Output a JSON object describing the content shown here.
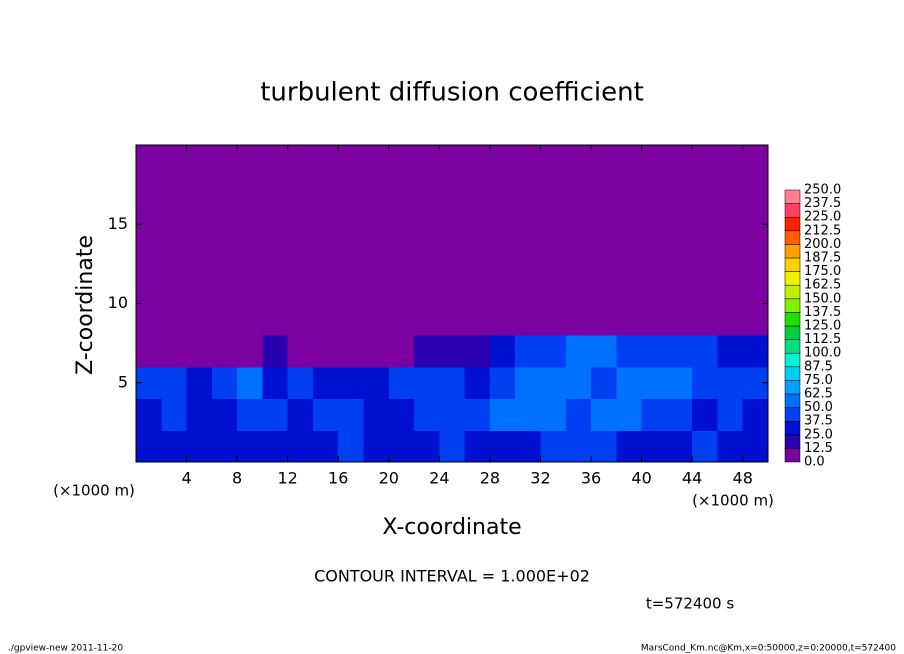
{
  "chart_data": {
    "type": "heatmap",
    "title": "turbulent diffusion coefficient",
    "x_label": "X-coordinate",
    "y_label": "Z-coordinate",
    "x_unit": "(×1000 m)",
    "y_unit": "(×1000 m)",
    "annotation": "CONTOUR INTERVAL = 1.000E+02",
    "time_label": "t=572400 s",
    "footer_left": "./gpview-new  2011-11-20",
    "footer_right": "MarsCond_Km.nc@Km,x=0:50000,z=0:20000,t=572400",
    "x": [
      1,
      3,
      5,
      7,
      9,
      11,
      13,
      15,
      17,
      19,
      21,
      23,
      25,
      27,
      29,
      31,
      33,
      35,
      37,
      39,
      41,
      43,
      45,
      47,
      49
    ],
    "y": [
      1,
      3,
      5,
      7,
      9,
      11,
      13,
      15,
      17,
      19
    ],
    "z": [
      [
        30,
        25,
        30,
        35,
        30,
        25,
        30,
        35,
        40,
        30,
        25,
        35,
        40,
        35,
        30,
        35,
        40,
        45,
        40,
        35,
        30,
        35,
        40,
        30,
        25
      ],
      [
        35,
        40,
        30,
        35,
        45,
        40,
        35,
        40,
        45,
        35,
        30,
        40,
        45,
        40,
        50,
        55,
        50,
        45,
        50,
        55,
        45,
        40,
        35,
        40,
        35
      ],
      [
        40,
        45,
        35,
        40,
        50,
        30,
        45,
        35,
        30,
        35,
        40,
        45,
        40,
        35,
        45,
        55,
        60,
        50,
        45,
        55,
        60,
        50,
        45,
        40,
        45
      ],
      [
        0,
        5,
        10,
        5,
        10,
        15,
        10,
        5,
        5,
        5,
        10,
        15,
        20,
        15,
        25,
        40,
        45,
        55,
        50,
        45,
        40,
        45,
        40,
        35,
        35
      ],
      [
        0,
        0,
        0,
        0,
        0,
        0,
        0,
        0,
        0,
        0,
        0,
        0,
        0,
        0,
        5,
        10,
        0,
        0,
        0,
        5,
        0,
        0,
        0,
        0,
        0
      ],
      [
        0,
        0,
        0,
        0,
        0,
        0,
        0,
        0,
        0,
        0,
        0,
        0,
        0,
        0,
        0,
        0,
        0,
        0,
        0,
        0,
        0,
        0,
        0,
        0,
        0
      ],
      [
        0,
        0,
        0,
        0,
        0,
        0,
        0,
        0,
        0,
        0,
        0,
        0,
        0,
        0,
        0,
        0,
        0,
        0,
        0,
        0,
        0,
        0,
        0,
        0,
        0
      ],
      [
        0,
        0,
        0,
        0,
        0,
        0,
        0,
        0,
        0,
        0,
        0,
        0,
        0,
        0,
        0,
        0,
        0,
        0,
        0,
        0,
        0,
        0,
        0,
        0,
        0
      ],
      [
        0,
        0,
        0,
        0,
        0,
        0,
        0,
        0,
        0,
        0,
        0,
        0,
        0,
        0,
        0,
        0,
        0,
        0,
        0,
        0,
        0,
        0,
        0,
        0,
        0
      ],
      [
        0,
        0,
        0,
        0,
        0,
        0,
        0,
        0,
        0,
        0,
        0,
        0,
        0,
        0,
        0,
        0,
        0,
        0,
        0,
        0,
        0,
        0,
        0,
        0,
        0
      ]
    ],
    "xlim": [
      0,
      50
    ],
    "ylim": [
      0,
      20
    ],
    "xticks": [
      4,
      8,
      12,
      16,
      20,
      24,
      28,
      32,
      36,
      40,
      44,
      48
    ],
    "yticks": [
      5,
      10,
      15
    ],
    "levels": [
      {
        "value": 0,
        "label": "0.0"
      },
      12.5,
      {
        "value": 25,
        "label": "25.0"
      },
      37.5,
      {
        "value": 50,
        "label": "50.0"
      },
      62.5,
      {
        "value": 75,
        "label": "75.0"
      },
      87.5,
      {
        "value": 100,
        "label": "100.0"
      },
      112.5,
      {
        "value": 125,
        "label": "125.0"
      },
      137.5,
      {
        "value": 150,
        "label": "150.0"
      },
      162.5,
      {
        "value": 175,
        "label": "175.0"
      },
      187.5,
      {
        "value": 200,
        "label": "200.0"
      },
      212.5,
      {
        "value": 225,
        "label": "225.0"
      },
      237.5,
      {
        "value": 250,
        "label": "250.0"
      }
    ],
    "colors": [
      "#7a00a0",
      "#2800b0",
      "#0010d0",
      "#0040f0",
      "#0070ff",
      "#00a0ff",
      "#00d0f0",
      "#00f0d0",
      "#00e080",
      "#00d040",
      "#20e000",
      "#80f000",
      "#c0f000",
      "#f0f000",
      "#ffd000",
      "#ffa000",
      "#ff6000",
      "#ff2000",
      "#ff4060",
      "#ff8090"
    ]
  }
}
